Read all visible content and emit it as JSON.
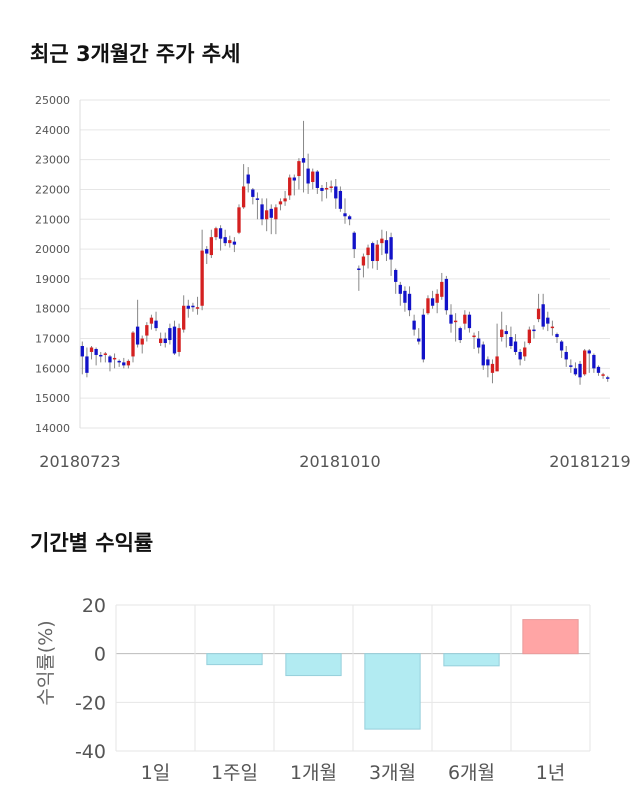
{
  "titles": {
    "price": "최근 3개월간 주가 추세",
    "returns": "기간별 수익률"
  },
  "chart_data": [
    {
      "type": "candlestick",
      "ylim": [
        14000,
        25000
      ],
      "yticks": [
        14000,
        15000,
        16000,
        17000,
        18000,
        19000,
        20000,
        21000,
        22000,
        23000,
        24000,
        25000
      ],
      "xtick_labels": [
        "20180723",
        "20181010",
        "20181219"
      ],
      "grid": true,
      "colors": {
        "up": "#d42020",
        "down": "#1212c8",
        "wick": "#888888"
      },
      "candles": [
        [
          16750,
          16400,
          16900,
          15800
        ],
        [
          16400,
          15850,
          16700,
          15700
        ],
        [
          16550,
          16700,
          16750,
          16300
        ],
        [
          16650,
          16450,
          16700,
          16100
        ],
        [
          16450,
          16400,
          16550,
          16200
        ],
        [
          16450,
          16500,
          16550,
          16200
        ],
        [
          16400,
          16200,
          16450,
          15900
        ],
        [
          16300,
          16350,
          16500,
          16000
        ],
        [
          16250,
          16200,
          16300,
          16050
        ],
        [
          16200,
          16100,
          16350,
          16000
        ],
        [
          16100,
          16250,
          16300,
          16000
        ],
        [
          16400,
          17200,
          17250,
          16200
        ],
        [
          17400,
          16800,
          18300,
          16700
        ],
        [
          16800,
          17000,
          17100,
          16500
        ],
        [
          17100,
          17450,
          17550,
          16900
        ],
        [
          17500,
          17700,
          17800,
          17300
        ],
        [
          17600,
          17350,
          17900,
          17250
        ],
        [
          16850,
          17000,
          17200,
          16750
        ],
        [
          17000,
          16850,
          17200,
          16700
        ],
        [
          17350,
          16950,
          17500,
          16800
        ],
        [
          17400,
          16500,
          17600,
          16450
        ],
        [
          16550,
          17350,
          17500,
          16400
        ],
        [
          17300,
          18100,
          18450,
          17200
        ],
        [
          18100,
          18000,
          18300,
          17700
        ],
        [
          18100,
          18050,
          18200,
          17900
        ],
        [
          18000,
          18050,
          18400,
          17800
        ],
        [
          18100,
          19950,
          20650,
          17950
        ],
        [
          20000,
          19850,
          20100,
          19500
        ],
        [
          19800,
          20400,
          20650,
          19700
        ],
        [
          20400,
          20700,
          20750,
          20300
        ],
        [
          20700,
          20350,
          20800,
          19950
        ],
        [
          20400,
          20200,
          20650,
          20100
        ],
        [
          20200,
          20300,
          20450,
          20050
        ],
        [
          20250,
          20150,
          20400,
          19900
        ],
        [
          20550,
          21400,
          21500,
          20500
        ],
        [
          21400,
          22100,
          22850,
          21350
        ],
        [
          22500,
          22200,
          22750,
          21900
        ],
        [
          22000,
          21750,
          22050,
          21500
        ],
        [
          21700,
          21650,
          21900,
          21000
        ],
        [
          21500,
          21000,
          21700,
          20800
        ],
        [
          21000,
          21300,
          21700,
          20600
        ],
        [
          21350,
          21050,
          21500,
          20500
        ],
        [
          21000,
          21400,
          21500,
          20500
        ],
        [
          21500,
          21600,
          21700,
          21300
        ],
        [
          21600,
          21700,
          21950,
          21450
        ],
        [
          21800,
          22400,
          22500,
          21650
        ],
        [
          22400,
          22300,
          22500,
          21800
        ],
        [
          22450,
          22950,
          23050,
          22000
        ],
        [
          23050,
          22900,
          24300,
          21900
        ],
        [
          22700,
          22200,
          23200,
          21850
        ],
        [
          22250,
          22600,
          22700,
          22000
        ],
        [
          22600,
          22050,
          22650,
          21850
        ],
        [
          22050,
          21950,
          22150,
          21600
        ],
        [
          22050,
          22050,
          22250,
          21700
        ],
        [
          22050,
          22100,
          22300,
          21900
        ],
        [
          22100,
          21700,
          22350,
          21350
        ],
        [
          21950,
          21350,
          22100,
          21250
        ],
        [
          21200,
          21100,
          21700,
          20850
        ],
        [
          21100,
          21000,
          21150,
          20800
        ],
        [
          20550,
          20000,
          20600,
          19700
        ],
        [
          19350,
          19300,
          19450,
          18600
        ],
        [
          19450,
          19750,
          19850,
          19050
        ],
        [
          19800,
          20050,
          20150,
          19350
        ],
        [
          20200,
          19600,
          20250,
          19350
        ],
        [
          19600,
          20150,
          20300,
          19300
        ],
        [
          20200,
          20350,
          20650,
          19800
        ],
        [
          20300,
          19850,
          20600,
          19600
        ],
        [
          20400,
          19650,
          20550,
          19100
        ],
        [
          19300,
          18900,
          19350,
          18500
        ],
        [
          18800,
          18500,
          18900,
          18100
        ],
        [
          18600,
          18200,
          18750,
          17900
        ],
        [
          18500,
          17950,
          18750,
          17750
        ],
        [
          17600,
          17300,
          17800,
          17100
        ],
        [
          17000,
          16900,
          17350,
          16800
        ],
        [
          17800,
          16300,
          18000,
          16200
        ],
        [
          17850,
          18350,
          18450,
          17800
        ],
        [
          18350,
          18100,
          18600,
          18000
        ],
        [
          18200,
          18500,
          18650,
          17850
        ],
        [
          18400,
          18900,
          19200,
          18300
        ],
        [
          19000,
          17950,
          19100,
          17800
        ],
        [
          17800,
          17500,
          18150,
          17200
        ],
        [
          17550,
          17600,
          17850,
          16900
        ],
        [
          17350,
          16950,
          17400,
          16850
        ],
        [
          17500,
          17800,
          17950,
          17300
        ],
        [
          17800,
          17350,
          17900,
          17200
        ],
        [
          17100,
          17100,
          17200,
          16650
        ],
        [
          17000,
          16700,
          17250,
          16500
        ],
        [
          16800,
          16100,
          16900,
          15950
        ],
        [
          16300,
          16100,
          16400,
          15700
        ],
        [
          15850,
          16150,
          16300,
          15500
        ],
        [
          15900,
          16400,
          17500,
          15900
        ],
        [
          17050,
          17300,
          17900,
          16900
        ],
        [
          17250,
          17150,
          17450,
          16700
        ],
        [
          17050,
          16750,
          17400,
          16650
        ],
        [
          16900,
          16550,
          17150,
          16450
        ],
        [
          16550,
          16300,
          16650,
          16100
        ],
        [
          16400,
          16700,
          16900,
          16250
        ],
        [
          16850,
          17300,
          17400,
          16800
        ],
        [
          17300,
          17250,
          17450,
          17000
        ],
        [
          17650,
          18000,
          18500,
          17550
        ],
        [
          18150,
          17400,
          18500,
          17300
        ],
        [
          17700,
          17500,
          17900,
          17250
        ],
        [
          17400,
          17400,
          17600,
          17100
        ],
        [
          17150,
          17050,
          17200,
          16850
        ],
        [
          16900,
          16600,
          16950,
          16350
        ],
        [
          16550,
          16300,
          16750,
          16050
        ],
        [
          16100,
          16050,
          16300,
          15850
        ],
        [
          16000,
          15800,
          16200,
          15750
        ],
        [
          16150,
          15700,
          16250,
          15450
        ],
        [
          15800,
          16600,
          16650,
          15750
        ],
        [
          16600,
          16500,
          16650,
          15850
        ],
        [
          16450,
          16000,
          16500,
          15850
        ],
        [
          16050,
          15850,
          16100,
          15750
        ],
        [
          15800,
          15800,
          15850,
          15650
        ],
        [
          15700,
          15650,
          15750,
          15550
        ]
      ]
    },
    {
      "type": "bar",
      "categories": [
        "1일",
        "1주일",
        "1개월",
        "3개월",
        "6개월",
        "1년"
      ],
      "values": [
        0,
        -4.5,
        -9,
        -31,
        -5,
        14
      ],
      "ylabel": "수익률(%)",
      "ylim": [
        -40,
        20
      ],
      "yticks": [
        -40,
        -20,
        0,
        20
      ],
      "grid": true,
      "colors": {
        "positive": "#ffa5a5",
        "negative": "#b2ebf2",
        "positive_edge": "#e89a9a",
        "negative_edge": "#96cfdb"
      }
    }
  ]
}
